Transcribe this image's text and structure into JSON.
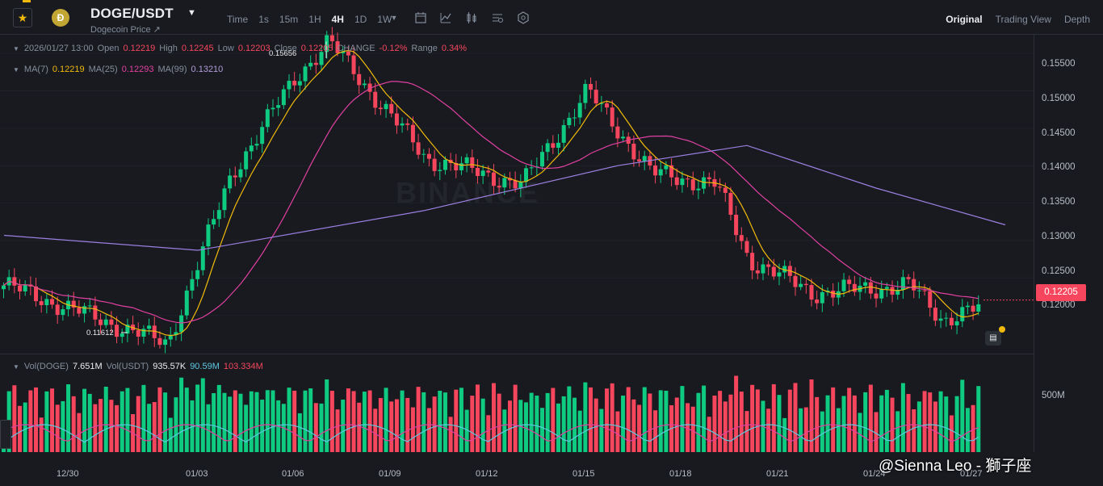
{
  "header": {
    "symbol": "DOGE/USDT",
    "subtitle": "Dogecoin Price",
    "subtitle_link_icon": "external-link-icon",
    "coin_glyph": "Ð",
    "intervals": [
      "Time",
      "1s",
      "15m",
      "1H",
      "4H",
      "1D",
      "1W"
    ],
    "active_interval": "4H",
    "views": [
      "Original",
      "Trading View",
      "Depth"
    ],
    "active_view": "Original"
  },
  "ohlc": {
    "datetime": "2026/01/27 13:00",
    "open_label": "Open",
    "open": "0.12219",
    "high_label": "High",
    "high": "0.12245",
    "low_label": "Low",
    "low": "0.12203",
    "close_label": "Close",
    "close": "0.12205",
    "change_label": "CHANGE",
    "change": "-0.12%",
    "range_label": "Range",
    "range": "0.34%"
  },
  "ma": {
    "ma7_label": "MA(7)",
    "ma7": "0.12219",
    "ma25_label": "MA(25)",
    "ma25": "0.12293",
    "ma99_label": "MA(99)",
    "ma99": "0.13210"
  },
  "volume": {
    "vol_doge_label": "Vol(DOGE)",
    "vol_doge": "7.651M",
    "vol_usdt_label": "Vol(USDT)",
    "vol_usdt": "935.57K",
    "ma_a": "90.59M",
    "ma_b": "103.334M",
    "axis_label": "500M"
  },
  "price_axis": [
    "0.15500",
    "0.15000",
    "0.14500",
    "0.14000",
    "0.13500",
    "0.13000",
    "0.12500",
    "0.12000"
  ],
  "last_price": "0.12205",
  "extremes": {
    "high": "0.15656",
    "low": "0.11612"
  },
  "time_axis": [
    "12/30",
    "01/03",
    "01/06",
    "01/09",
    "01/12",
    "01/15",
    "01/18",
    "01/21",
    "01/24",
    "01/27"
  ],
  "watermark": "BINANCE",
  "credit": "@Sienna Leo - 獅子座",
  "colors": {
    "up": "#0ecb81",
    "down": "#f6465d",
    "ma7": "#f0b90b",
    "ma25": "#e040a0",
    "ma99": "#9c7fe0",
    "accent": "#f0b90b"
  },
  "chart_data": {
    "type": "candlestick",
    "interval": "4H",
    "x_range": [
      "12/30",
      "01/27"
    ],
    "price_ylim": [
      0.115,
      0.1575
    ],
    "key_levels": [
      {
        "date": "12/28",
        "price": 0.124
      },
      {
        "date": "01/01",
        "price": 0.1162
      },
      {
        "date": "01/03",
        "price": 0.139
      },
      {
        "date": "01/05",
        "price": 0.152
      },
      {
        "date": "01/06",
        "price": 0.1566
      },
      {
        "date": "01/09",
        "price": 0.141
      },
      {
        "date": "01/12",
        "price": 0.1375
      },
      {
        "date": "01/14",
        "price": 0.15
      },
      {
        "date": "01/16",
        "price": 0.139
      },
      {
        "date": "01/18",
        "price": 0.1375
      },
      {
        "date": "01/19",
        "price": 0.1275
      },
      {
        "date": "01/21",
        "price": 0.123
      },
      {
        "date": "01/24",
        "price": 0.124
      },
      {
        "date": "01/25",
        "price": 0.1195
      },
      {
        "date": "01/27",
        "price": 0.1221
      }
    ],
    "ma99_path": [
      {
        "date": "12/28",
        "price": 0.1307
      },
      {
        "date": "01/02",
        "price": 0.1287
      },
      {
        "date": "01/09",
        "price": 0.134
      },
      {
        "date": "01/15",
        "price": 0.14
      },
      {
        "date": "01/19",
        "price": 0.1427
      },
      {
        "date": "01/23",
        "price": 0.137
      },
      {
        "date": "01/27",
        "price": 0.1321
      }
    ],
    "volume_ylim": [
      0,
      1000
    ]
  }
}
